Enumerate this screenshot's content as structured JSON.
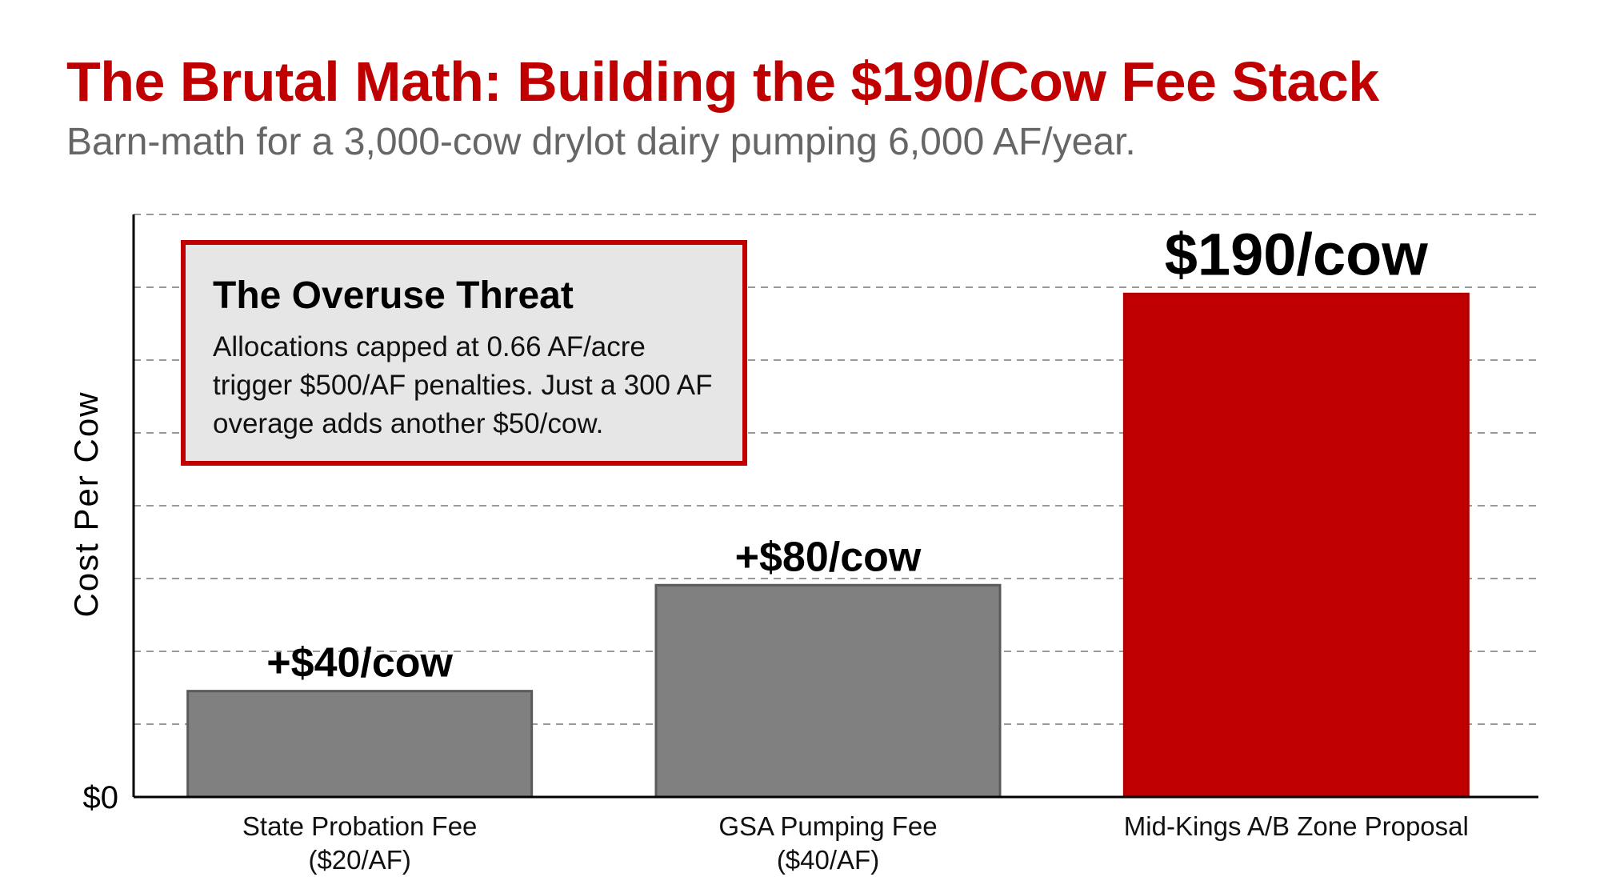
{
  "header": {
    "title": "The Brutal Math: Building the $190/Cow Fee Stack",
    "subtitle": "Barn-math for a 3,000-cow drylot dairy pumping 6,000 AF/year."
  },
  "callout": {
    "title": "The Overuse Threat",
    "body": "Allocations capped at 0.66 AF/acre trigger $500/AF penalties. Just a 300 AF overage adds another $50/cow."
  },
  "chart_data": {
    "type": "bar",
    "title": "The Brutal Math: Building the $190/Cow Fee Stack",
    "xlabel": "",
    "ylabel": "Cost Per Cow",
    "ylim": [
      0,
      220
    ],
    "y_tick_labels": [
      "$0"
    ],
    "grid": true,
    "categories": [
      [
        "State Probation Fee",
        "($20/AF)"
      ],
      [
        "GSA Pumping Fee",
        "($40/AF)"
      ],
      [
        "Mid-Kings A/B Zone Proposal"
      ]
    ],
    "values": [
      40,
      80,
      190
    ],
    "data_labels": [
      "+$40/cow",
      "+$80/cow",
      "$190/cow"
    ],
    "colors": [
      "#808080",
      "#808080",
      "#c00000"
    ],
    "border_colors": [
      "#5a5a5a",
      "#5a5a5a",
      "#b00000"
    ]
  }
}
